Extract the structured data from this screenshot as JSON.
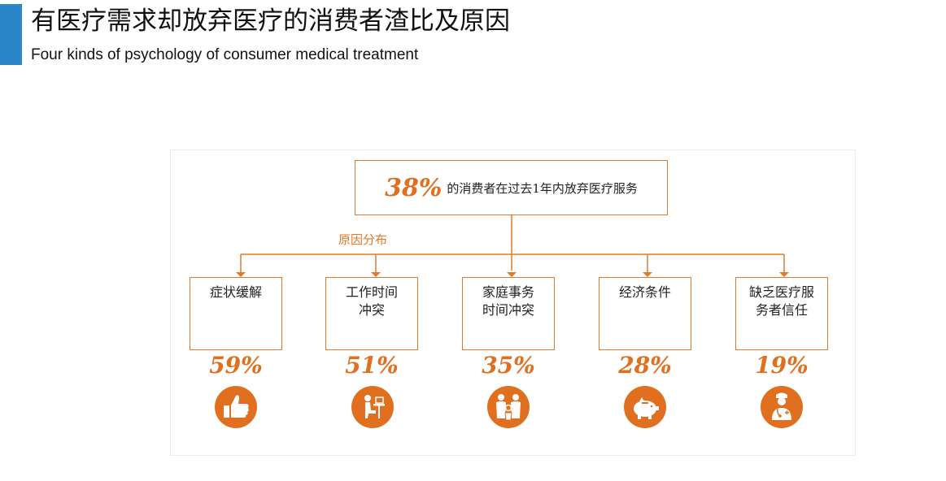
{
  "header": {
    "title": "有医疗需求却放弃医疗的消费者渣比及原因",
    "subtitle": "Four kinds of psychology of consumer medical treatment"
  },
  "diagram": {
    "top": {
      "percent": "38%",
      "text": "的消费者在过去1年内放弃医疗服务"
    },
    "branch_label": "原因分布",
    "reasons": [
      {
        "lines": [
          "症状缓解"
        ],
        "percent": "59%",
        "icon": "thumbs-up-icon"
      },
      {
        "lines": [
          "工作时间",
          "冲突"
        ],
        "percent": "51%",
        "icon": "person-at-desk-icon"
      },
      {
        "lines": [
          "家庭事务",
          "时间冲突"
        ],
        "percent": "35%",
        "icon": "family-icon"
      },
      {
        "lines": [
          "经济条件"
        ],
        "percent": "28%",
        "icon": "piggy-bank-icon"
      },
      {
        "lines": [
          "缺乏医疗服",
          "务者信任"
        ],
        "percent": "19%",
        "icon": "doctor-icon"
      }
    ],
    "colors": {
      "accent": "#e0701f",
      "bar": "#2a86c8"
    }
  }
}
